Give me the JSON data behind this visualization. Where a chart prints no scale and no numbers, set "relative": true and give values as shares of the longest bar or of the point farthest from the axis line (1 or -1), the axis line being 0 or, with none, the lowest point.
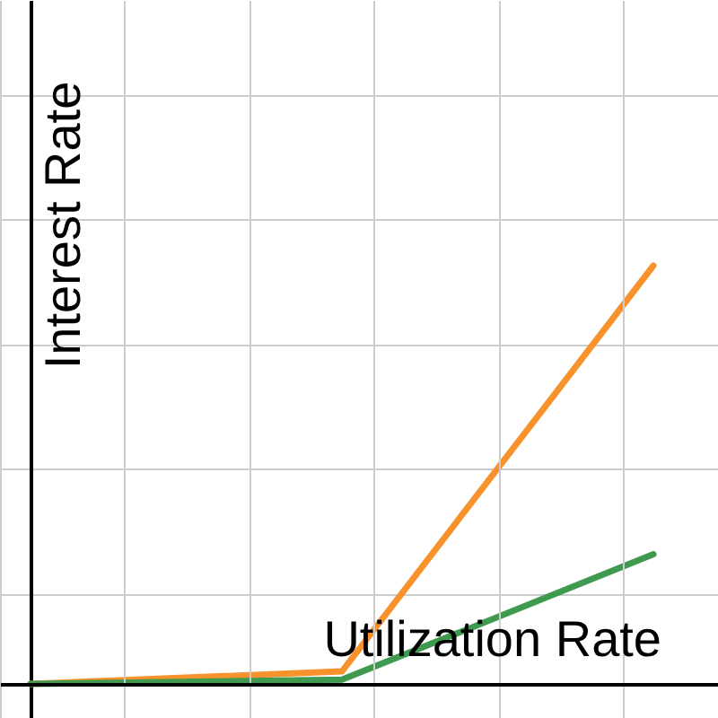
{
  "chart_data": {
    "type": "line",
    "relative": true,
    "xlabel": "Utilization Rate",
    "ylabel": "Interest Rate",
    "categories": [
      null,
      null,
      null
    ],
    "grid": true,
    "series": [
      {
        "color": "#f7922d",
        "values": [
          0,
          0.03,
          1
        ]
      },
      {
        "color": "#3f9a4f",
        "values": [
          0,
          0.01,
          0.31
        ]
      }
    ]
  }
}
